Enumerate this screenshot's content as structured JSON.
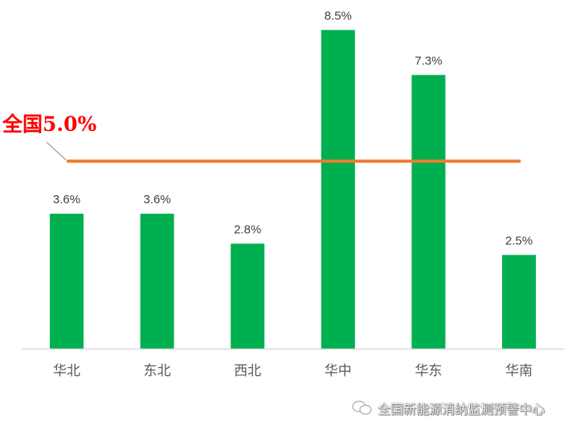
{
  "chart_data": {
    "type": "bar",
    "categories": [
      "华北",
      "东北",
      "西北",
      "华中",
      "华东",
      "华南"
    ],
    "values": [
      3.6,
      3.6,
      2.8,
      8.5,
      7.3,
      2.5
    ],
    "data_labels": [
      "3.6%",
      "3.6%",
      "2.8%",
      "8.5%",
      "7.3%",
      "2.5%"
    ],
    "unit": "%",
    "ylim": [
      0,
      9.3
    ],
    "grid": false,
    "reference_line": {
      "value": 5.0,
      "label": "全国5.0%",
      "color": "#ED7D31"
    },
    "colors": {
      "bar": "#00B050",
      "label": "#FF0000",
      "axis": "#D9D9D9",
      "text": "#404040"
    }
  },
  "watermark": {
    "icon": "wechat-icon",
    "text": "全国新能源消纳监测预警中心"
  }
}
